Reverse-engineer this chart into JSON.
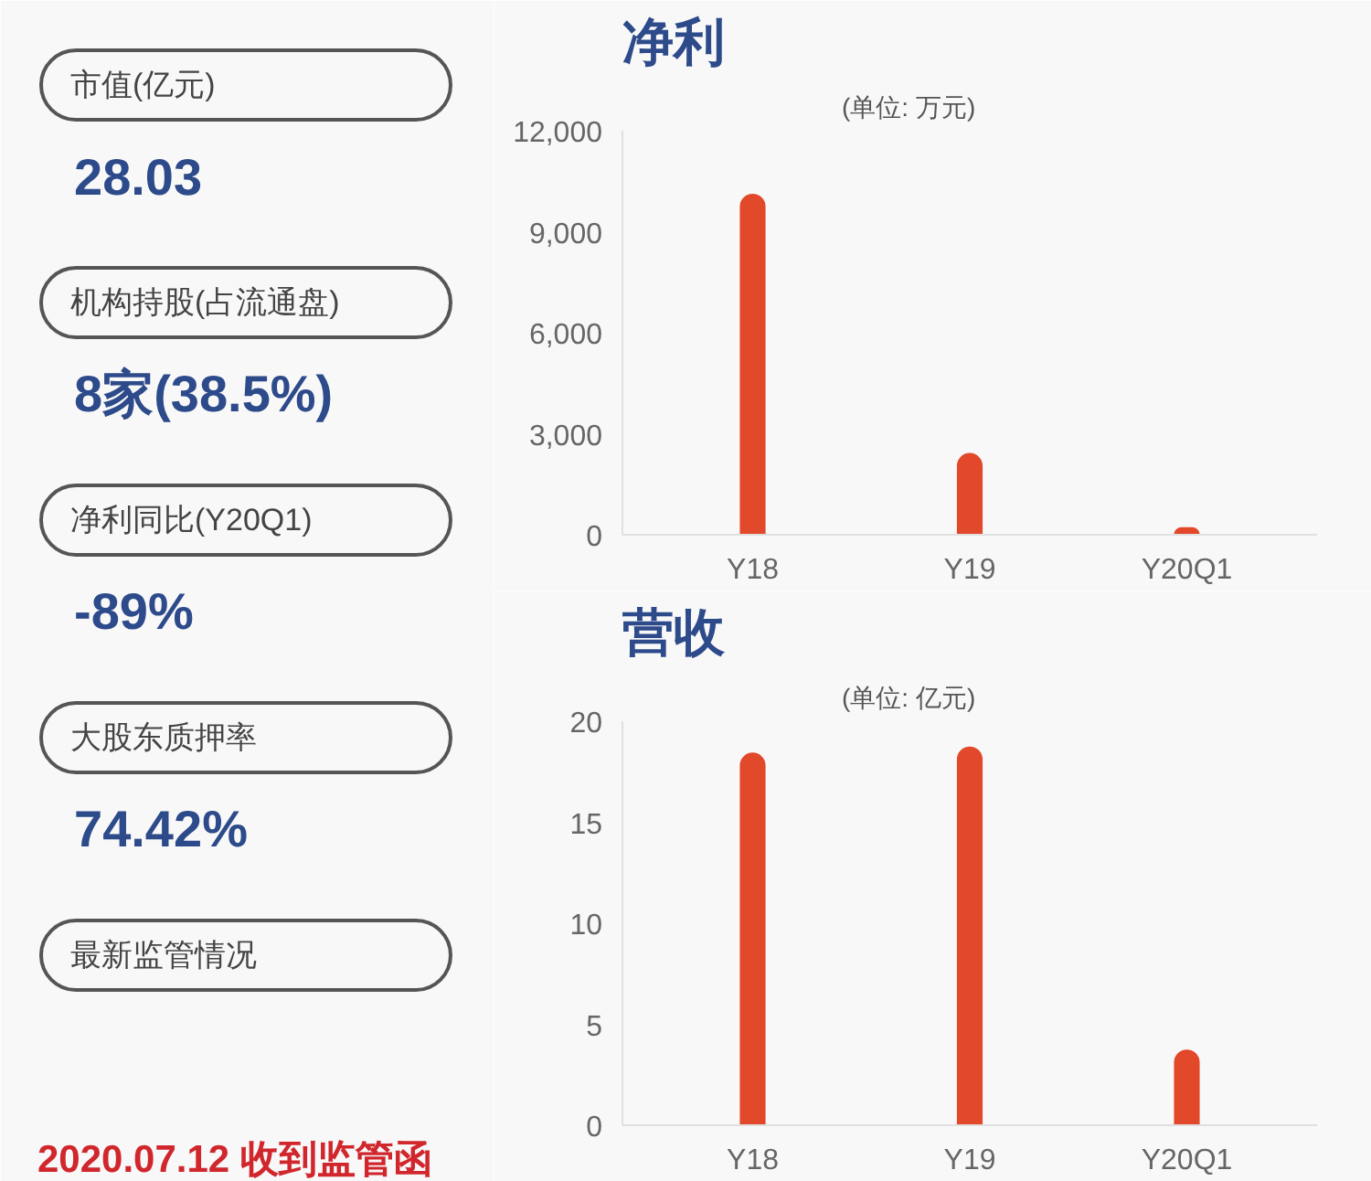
{
  "chart_data": [
    {
      "type": "other",
      "annotations": [
        "市值(亿元)",
        "28.03",
        "机构持股(占流通盘)",
        "8家(38.5%)",
        "净利同比(Y20Q1)",
        "-89%",
        "大股东质押率",
        "74.42%",
        "最新监管情况",
        "2020.07.12 收到监管函"
      ]
    },
    {
      "type": "bar",
      "title": "净利",
      "subtitle": "(单位: 万元)",
      "categories": [
        "Y18",
        "Y19",
        "Y20Q1"
      ],
      "values": [
        10100,
        2400,
        200
      ],
      "color": "#e2482a",
      "ylim": [
        0,
        12000
      ],
      "yticks": [
        0,
        {
          "value": 3000,
          "label": "3,000"
        },
        {
          "value": 6000,
          "label": "6,000"
        },
        {
          "value": 9000,
          "label": "9,000"
        },
        {
          "value": 12000,
          "label": "12,000"
        }
      ],
      "grid": false
    },
    {
      "type": "bar",
      "title": "营收",
      "subtitle": "(单位: 亿元)",
      "categories": [
        "Y18",
        "Y19",
        "Y20Q1"
      ],
      "values": [
        18.4,
        18.7,
        3.7
      ],
      "color": "#e2482a",
      "ylim": [
        0,
        20
      ],
      "yticks": [
        0,
        5,
        10,
        15,
        20
      ],
      "grid": false
    }
  ]
}
